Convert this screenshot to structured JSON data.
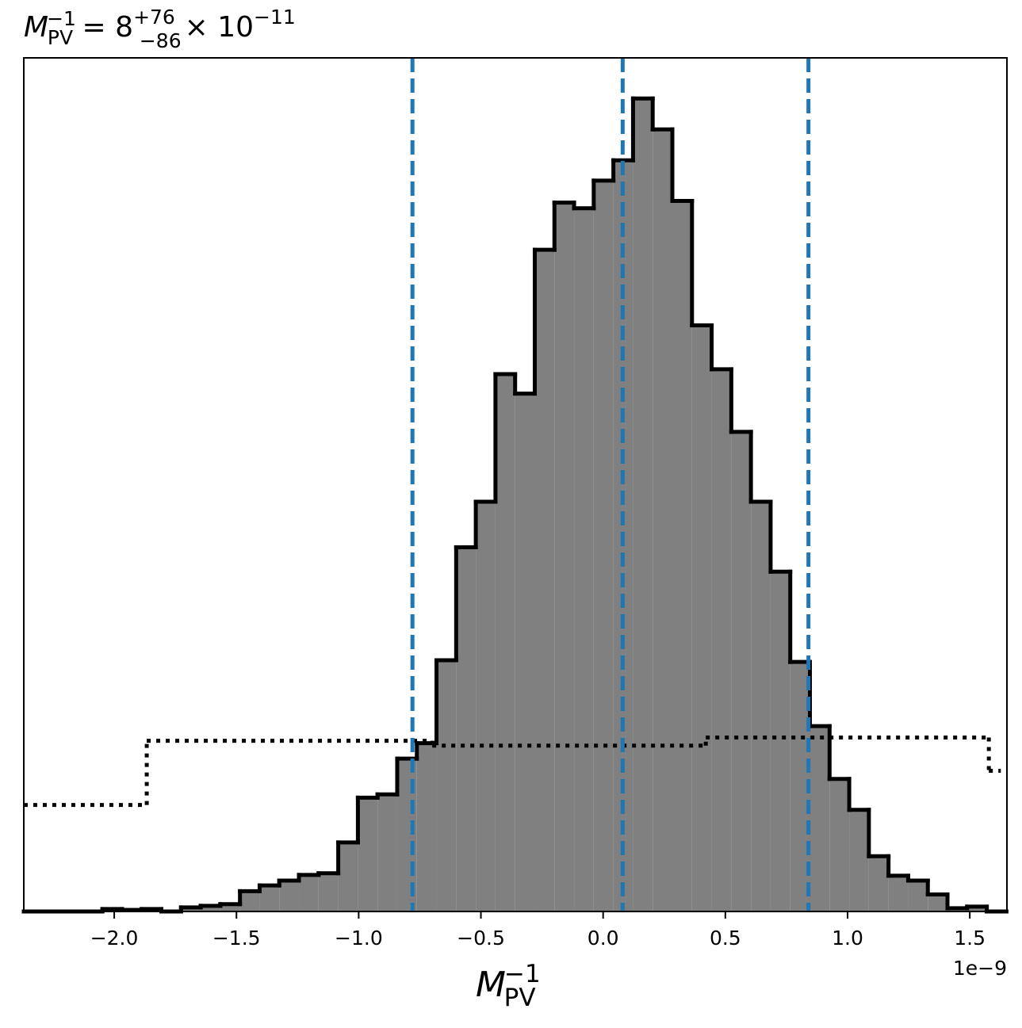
{
  "chart_data": {
    "type": "histogram",
    "title": {
      "symbol": "M",
      "sub": "PV",
      "sup": "−1",
      "equals": " = 8",
      "upper": "+76",
      "lower": "−86",
      "times": "× 10",
      "exponent": "−11"
    },
    "x_label": {
      "symbol": "M",
      "sub": "PV",
      "sup": "−1"
    },
    "x_offset_label": "1e−9",
    "bins": [
      -2.37,
      -2.2896,
      -2.2092,
      -2.1288,
      -2.0484,
      -1.968,
      -1.8876,
      -1.8072,
      -1.7268,
      -1.6464,
      -1.566,
      -1.4856,
      -1.4052,
      -1.3248,
      -1.2444,
      -1.164,
      -1.0836,
      -1.0032,
      -0.9228,
      -0.8424,
      -0.762,
      -0.6816,
      -0.6012,
      -0.5208,
      -0.4404,
      -0.36,
      -0.2796,
      -0.1992,
      -0.1188,
      -0.0384,
      0.042,
      0.1224,
      0.2028,
      0.2832,
      0.3636,
      0.444,
      0.5244,
      0.6048,
      0.6852,
      0.7656,
      0.846,
      0.9264,
      1.0068,
      1.0872,
      1.1676,
      1.248,
      1.3284,
      1.4088,
      1.4892,
      1.5696,
      1.65
    ],
    "values": [
      0,
      0,
      0,
      0,
      0.003,
      0.002,
      0.003,
      0,
      0.005,
      0.007,
      0.009,
      0.025,
      0.032,
      0.038,
      0.045,
      0.047,
      0.085,
      0.14,
      0.144,
      0.188,
      0.207,
      0.309,
      0.448,
      0.504,
      0.661,
      0.637,
      0.814,
      0.872,
      0.865,
      0.899,
      0.924,
      1.0,
      0.962,
      0.874,
      0.721,
      0.667,
      0.59,
      0.504,
      0.418,
      0.307,
      0.228,
      0.163,
      0.125,
      0.068,
      0.044,
      0.038,
      0.021,
      0.004,
      0.006,
      0
    ],
    "color": "#808080",
    "edge_color": "#000000",
    "prior": {
      "bins": [
        -2.37,
        -1.867,
        -0.699,
        0.42,
        1.578,
        1.627
      ],
      "values": [
        0.131,
        0.21,
        0.204,
        0.214,
        0.173
      ],
      "color": "#000000"
    },
    "quantiles": [
      -0.78,
      0.08,
      0.84
    ],
    "quantile_color": "#1f77b4",
    "xlim": [
      -2.37,
      1.652
    ],
    "ylim": [
      0,
      1.05
    ],
    "xticks": [
      {
        "value": -2.0,
        "label": "−2.0"
      },
      {
        "value": -1.5,
        "label": "−1.5"
      },
      {
        "value": -1.0,
        "label": "−1.0"
      },
      {
        "value": -0.5,
        "label": "−0.5"
      },
      {
        "value": 0,
        "label": "0.0"
      },
      {
        "value": 0.5,
        "label": "0.5"
      },
      {
        "value": 1.0,
        "label": "1.0"
      },
      {
        "value": 1.5,
        "label": "1.5"
      }
    ]
  }
}
